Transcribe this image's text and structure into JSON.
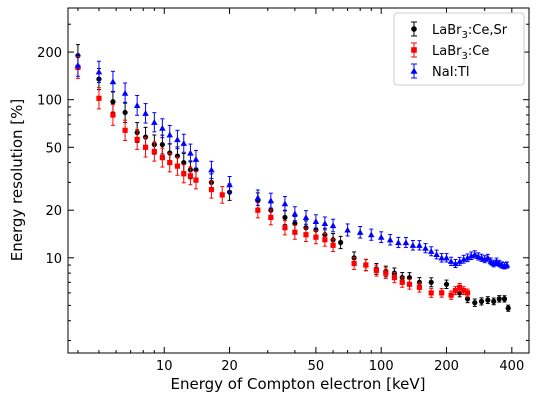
{
  "chart_data": {
    "type": "scatter",
    "title": "",
    "xlabel": "Energy of Compton electron [keV]",
    "ylabel": "Energy resolution [%]",
    "x_scale": "log",
    "y_scale": "log",
    "xlim": [
      3.6,
      480
    ],
    "ylim": [
      2.5,
      380
    ],
    "x_ticks": [
      10,
      20,
      50,
      100,
      200,
      400
    ],
    "x_tick_labels": [
      "10",
      "20",
      "50",
      "100",
      "200",
      "400"
    ],
    "y_ticks": [
      10,
      20,
      50,
      100,
      200
    ],
    "y_tick_labels": [
      "10",
      "20",
      "50",
      "100",
      "200"
    ],
    "grid": false,
    "legend_position": "top-right",
    "series": [
      {
        "name": "LaBr3:Ce,Sr",
        "legend_main": "LaBr",
        "legend_sub": "3",
        "legend_rest": ":Ce,Sr",
        "color": "#000000",
        "marker": "circle",
        "x": [
          4.0,
          5.0,
          5.8,
          6.6,
          7.5,
          8.2,
          9.0,
          9.8,
          10.6,
          11.5,
          12.3,
          13.2,
          14.0,
          16.5,
          20.0,
          27.0,
          31.0,
          36.0,
          40.0,
          45.0,
          50.0,
          55.0,
          60.0,
          65.0,
          75.0,
          85.0,
          95.0,
          105.0,
          115.0,
          125.0,
          135.0,
          150.0,
          170.0,
          200.0,
          230.0,
          250.0,
          270.0,
          290.0,
          310.0,
          330.0,
          350.0,
          370.0,
          385.0
        ],
        "y": [
          190,
          135,
          97,
          83,
          62,
          58,
          52,
          52,
          46,
          44,
          40,
          36,
          36,
          30,
          26,
          23,
          20,
          18,
          16.5,
          15.5,
          15,
          14,
          13,
          12.5,
          10,
          9,
          8.5,
          8.2,
          8,
          7.5,
          7.5,
          7,
          7,
          6.8,
          6,
          5.5,
          5.2,
          5.3,
          5.4,
          5.3,
          5.5,
          5.5,
          4.8
        ]
      },
      {
        "name": "LaBr3:Ce",
        "legend_main": "LaBr",
        "legend_sub": "3",
        "legend_rest": ":Ce",
        "color": "#ff0000",
        "marker": "square",
        "x": [
          4.0,
          5.0,
          5.8,
          6.6,
          7.5,
          8.2,
          9.0,
          9.8,
          10.6,
          11.5,
          12.3,
          13.2,
          14.0,
          16.5,
          18.5,
          27.0,
          31.0,
          36.0,
          40.0,
          45.0,
          50.0,
          55.0,
          60.0,
          75.0,
          85.0,
          95.0,
          105.0,
          115.0,
          125.0,
          135.0,
          150.0,
          170.0,
          190.0,
          210.0,
          220.0,
          230.0,
          240.0,
          250.0
        ],
        "y": [
          160,
          102,
          80,
          64,
          56,
          50,
          47,
          43,
          40,
          38,
          34,
          33,
          31,
          27,
          25,
          20,
          18,
          15.5,
          14.5,
          14,
          13.5,
          13,
          12,
          9.2,
          9,
          8.3,
          8,
          7.5,
          7,
          6.8,
          6.5,
          6,
          6,
          5.8,
          6.2,
          6.5,
          6.2,
          6
        ]
      },
      {
        "name": "NaI:Tl",
        "legend_main": "NaI:Tl",
        "legend_sub": "",
        "legend_rest": "",
        "color": "#0000ff",
        "marker": "triangle",
        "x": [
          4.0,
          5.0,
          5.8,
          6.6,
          7.5,
          8.2,
          9.0,
          9.8,
          10.6,
          11.5,
          12.3,
          13.2,
          14.0,
          16.5,
          20.0,
          27.0,
          31.0,
          36.0,
          40.0,
          45.0,
          50.0,
          55.0,
          60.0,
          70.0,
          80.0,
          90.0,
          100.0,
          110.0,
          120.0,
          130.0,
          140.0,
          150.0,
          160.0,
          170.0,
          180.0,
          190.0,
          200.0,
          210.0,
          220.0,
          230.0,
          240.0,
          250.0,
          260.0,
          270.0,
          280.0,
          290.0,
          300.0,
          310.0,
          320.0,
          330.0,
          340.0,
          350.0,
          360.0,
          370.0,
          380.0
        ],
        "y": [
          165,
          150,
          130,
          110,
          92,
          82,
          72,
          66,
          60,
          56,
          53,
          46,
          42,
          36,
          29,
          24,
          23,
          22,
          19,
          18,
          17,
          16.5,
          16,
          15,
          14.5,
          14,
          13.5,
          13,
          12.5,
          12.5,
          12,
          12,
          11.5,
          11,
          10.5,
          10,
          10,
          9.5,
          9.2,
          9.5,
          9.8,
          10,
          10.3,
          10.5,
          10.2,
          10,
          9.8,
          10,
          9.5,
          9.2,
          9.5,
          9.2,
          9,
          8.9,
          9
        ]
      }
    ]
  }
}
